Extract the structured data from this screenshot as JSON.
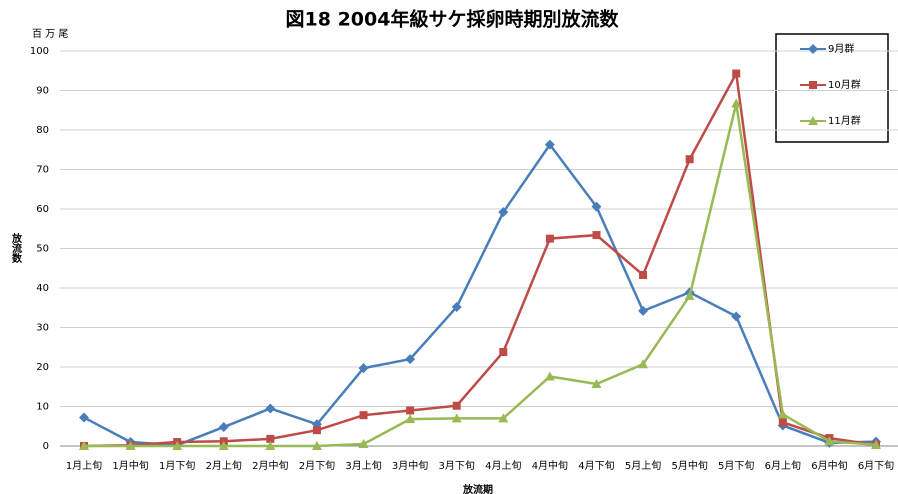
{
  "chart_data": {
    "type": "line",
    "title": "図18 2004年級サケ採卵時期別放流数",
    "y_unit": "百 万 尾",
    "y_label": "放流数",
    "x_label": "放流期",
    "categories": [
      "1月上旬",
      "1月中旬",
      "1月下旬",
      "2月上旬",
      "2月中旬",
      "2月下旬",
      "3月上旬",
      "3月中旬",
      "3月下旬",
      "4月上旬",
      "4月中旬",
      "4月下旬",
      "5月上旬",
      "5月中旬",
      "5月下旬",
      "6月上旬",
      "6月中旬",
      "6月下旬"
    ],
    "series": [
      {
        "name": "9月群",
        "color": "#4a7ebb",
        "marker": "diamond",
        "values": [
          7.2,
          1.0,
          0.2,
          4.8,
          9.5,
          5.5,
          19.7,
          22.0,
          35.2,
          59.2,
          76.3,
          60.6,
          34.2,
          38.9,
          32.8,
          5.2,
          0.8,
          1.1
        ]
      },
      {
        "name": "10月群",
        "color": "#be4b48",
        "marker": "square",
        "values": [
          0,
          0.2,
          1.0,
          1.2,
          1.8,
          4.0,
          7.8,
          9.0,
          10.2,
          23.8,
          52.5,
          53.4,
          43.3,
          72.6,
          94.3,
          6.0,
          2.0,
          0.3
        ]
      },
      {
        "name": "11月群",
        "color": "#98b954",
        "marker": "triangle",
        "values": [
          0,
          0,
          0,
          0,
          0,
          0,
          0.5,
          6.8,
          7.0,
          7.0,
          17.6,
          15.7,
          20.7,
          38.0,
          86.7,
          8.0,
          1.2,
          0.3
        ]
      }
    ],
    "ylim": [
      0,
      100
    ],
    "yticks": [
      0,
      10,
      20,
      30,
      40,
      50,
      60,
      70,
      80,
      90,
      100
    ],
    "grid": true
  }
}
